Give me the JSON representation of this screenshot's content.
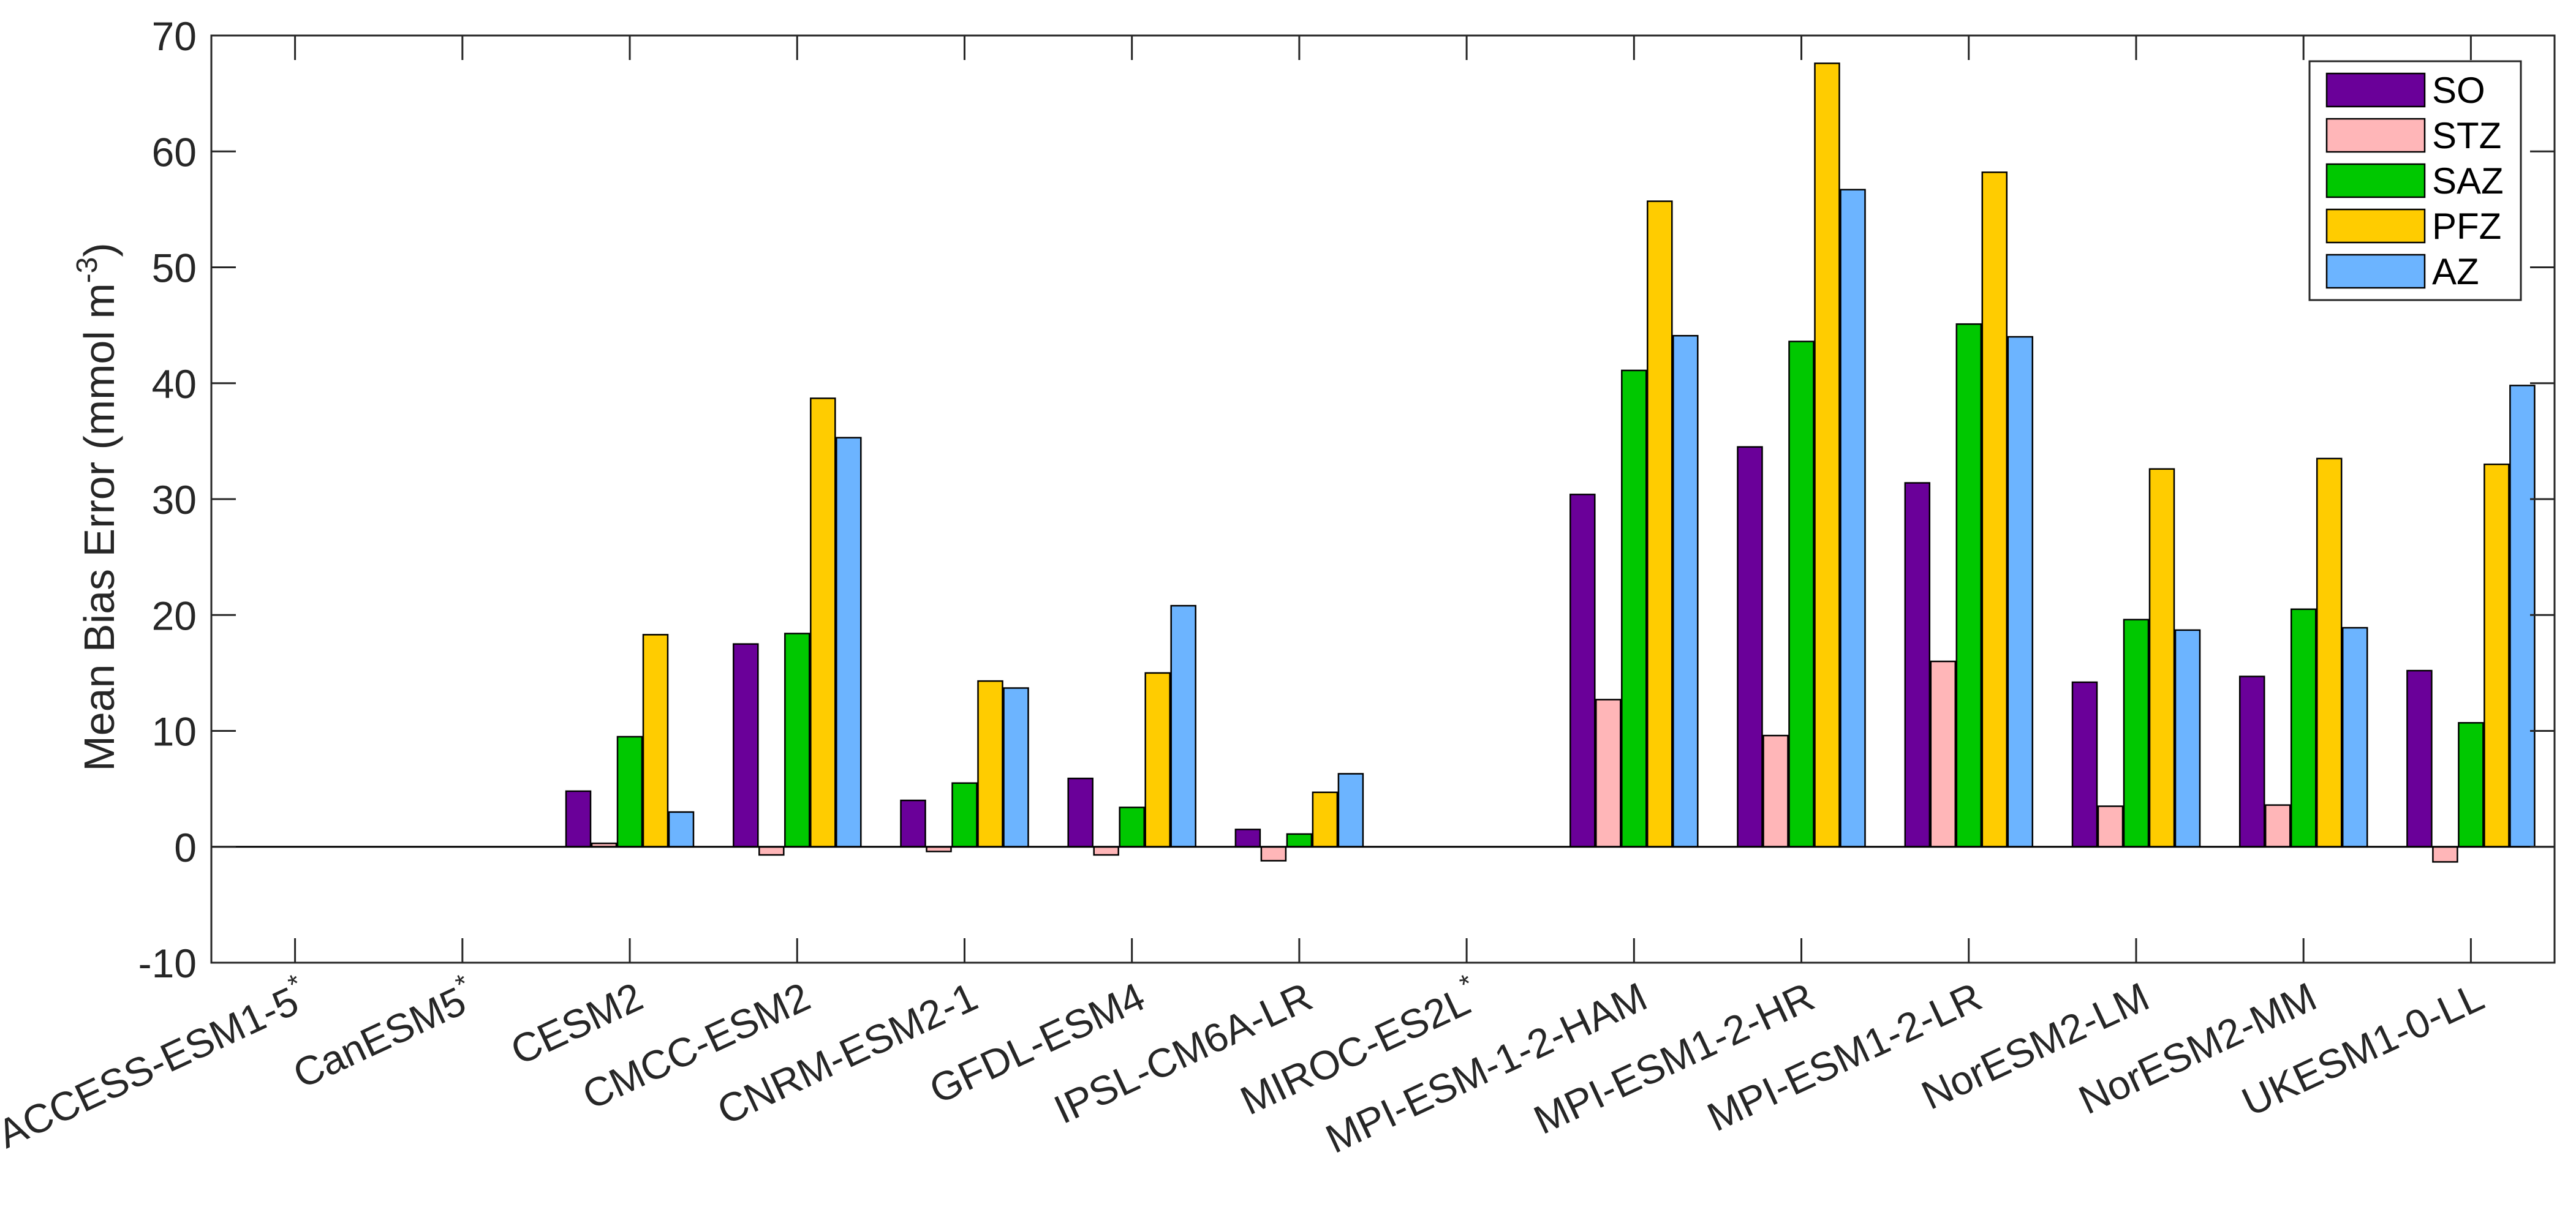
{
  "chart_data": {
    "type": "bar",
    "title": "",
    "xlabel": "",
    "ylabel": "Mean Bias Error (mmol m",
    "ylabel_sup": "-3",
    "ylabel_close": ")",
    "ylim": [
      -10,
      70
    ],
    "yticks": [
      -10,
      0,
      10,
      20,
      30,
      40,
      50,
      60,
      70
    ],
    "grid": false,
    "legend_position": "top-right",
    "categories": [
      {
        "label": "ACCESS-ESM1-5",
        "mark": "*"
      },
      {
        "label": "CanESM5",
        "mark": "*"
      },
      {
        "label": "CESM2",
        "mark": ""
      },
      {
        "label": "CMCC-ESM2",
        "mark": ""
      },
      {
        "label": "CNRM-ESM2-1",
        "mark": ""
      },
      {
        "label": "GFDL-ESM4",
        "mark": ""
      },
      {
        "label": "IPSL-CM6A-LR",
        "mark": ""
      },
      {
        "label": "MIROC-ES2L",
        "mark": "*"
      },
      {
        "label": "MPI-ESM-1-2-HAM",
        "mark": ""
      },
      {
        "label": "MPI-ESM1-2-HR",
        "mark": ""
      },
      {
        "label": "MPI-ESM1-2-LR",
        "mark": ""
      },
      {
        "label": "NorESM2-LM",
        "mark": ""
      },
      {
        "label": "NorESM2-MM",
        "mark": ""
      },
      {
        "label": "UKESM1-0-LL",
        "mark": ""
      }
    ],
    "series": [
      {
        "name": "SO",
        "color": "#6a0099",
        "values": [
          0,
          0,
          4.8,
          17.5,
          4.0,
          5.9,
          1.5,
          0,
          30.4,
          34.5,
          31.4,
          14.2,
          14.7,
          15.2
        ]
      },
      {
        "name": "STZ",
        "color": "#ffb6b8",
        "values": [
          0,
          0,
          0.3,
          -0.7,
          -0.4,
          -0.7,
          -1.2,
          0,
          12.7,
          9.6,
          16.0,
          3.5,
          3.6,
          -1.3
        ]
      },
      {
        "name": "SAZ",
        "color": "#00c800",
        "values": [
          0,
          0,
          9.5,
          18.4,
          5.5,
          3.4,
          1.1,
          0,
          41.1,
          43.6,
          45.1,
          19.6,
          20.5,
          10.7
        ]
      },
      {
        "name": "PFZ",
        "color": "#ffcc00",
        "values": [
          0,
          0,
          18.3,
          38.7,
          14.3,
          15.0,
          4.7,
          0,
          55.7,
          67.6,
          58.2,
          32.6,
          33.5,
          33.0
        ]
      },
      {
        "name": "AZ",
        "color": "#6cb4ff",
        "values": [
          0,
          0,
          3.0,
          35.3,
          13.7,
          20.8,
          6.3,
          0,
          44.1,
          56.7,
          44.0,
          18.7,
          18.9,
          39.8
        ]
      }
    ]
  }
}
